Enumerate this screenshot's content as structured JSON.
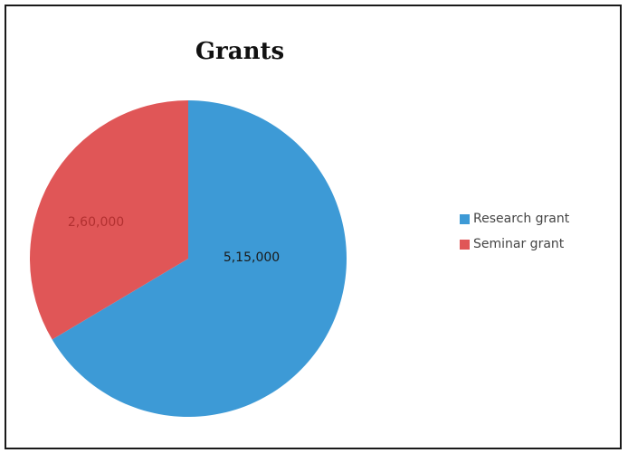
{
  "chart_data": {
    "type": "pie",
    "title": "Grants",
    "categories": [
      "Research grant",
      "Seminar grant"
    ],
    "values": [
      515000,
      260000
    ],
    "data_labels": [
      "5,15,000",
      "2,60,000"
    ],
    "colors": [
      "#3d9ad6",
      "#e05657"
    ],
    "label_colors": [
      "#1a1a1a",
      "#b23030"
    ],
    "legend_position": "right"
  }
}
